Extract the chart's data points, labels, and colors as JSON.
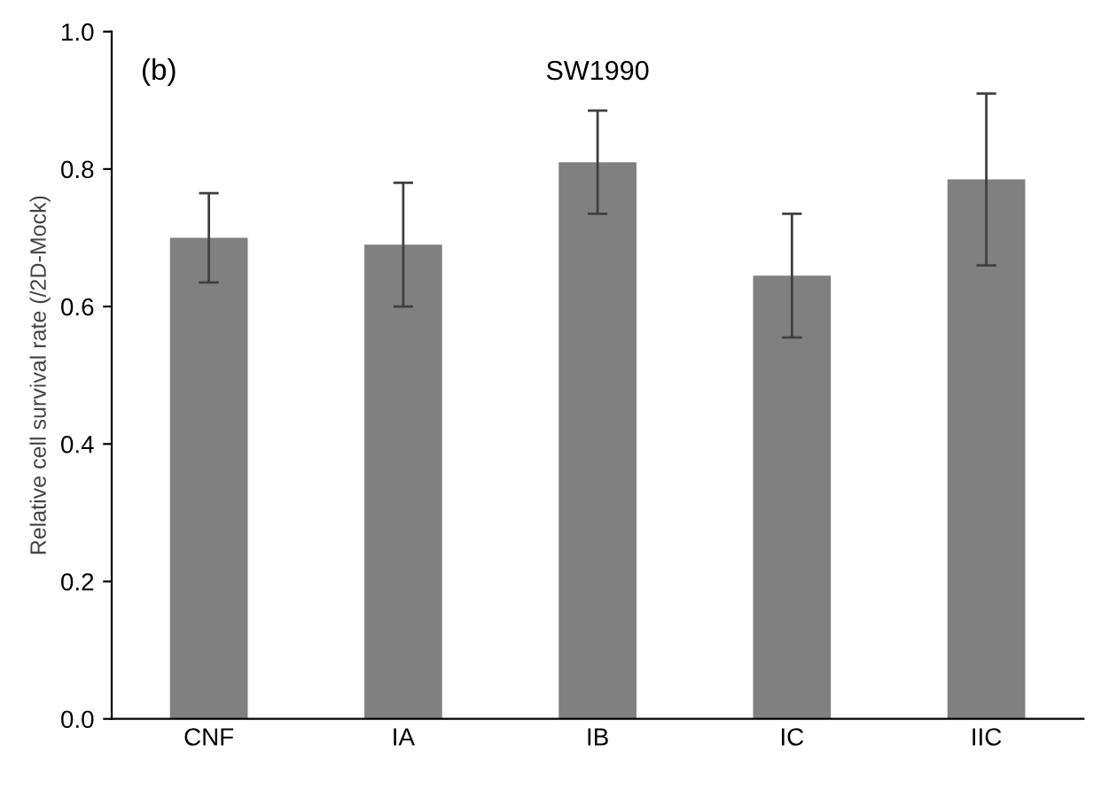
{
  "chart_data": {
    "type": "bar",
    "title": "SW1990",
    "ylabel": "Relative cell survival rate (/2D-Mock)",
    "annotations": [
      "(b)"
    ],
    "categories": [
      "CNF",
      "IA",
      "IB",
      "IC",
      "IIC"
    ],
    "values": [
      0.7,
      0.69,
      0.81,
      0.645,
      0.785
    ],
    "errors": [
      0.065,
      0.09,
      0.075,
      0.09,
      0.125
    ],
    "color": "#808080",
    "ylim": [
      0,
      1.0
    ],
    "yticks": [
      {
        "value": 0,
        "label": "0.0"
      },
      0.2,
      0.4,
      0.6,
      0.8,
      {
        "value": 1.0,
        "label": "1.0"
      }
    ],
    "grid": false
  }
}
